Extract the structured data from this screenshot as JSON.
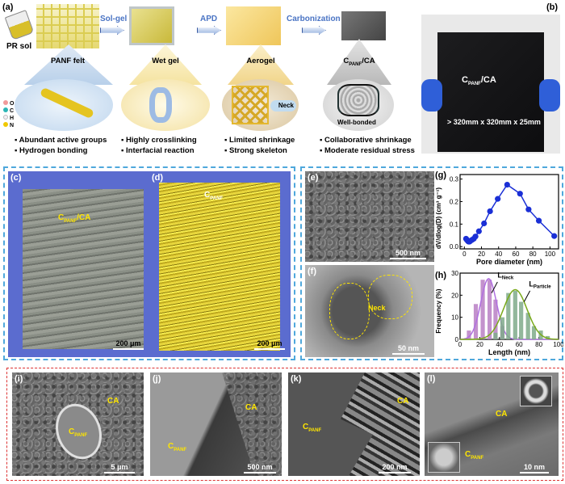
{
  "panel_a": {
    "label": "(a)",
    "steps": [
      "Sol-gel",
      "APD",
      "Carbonization"
    ],
    "stages": [
      {
        "title": "PANF felt",
        "bullets": [
          "Abundant active groups",
          "Hydrogen bonding"
        ]
      },
      {
        "title": "Wet gel",
        "bullets": [
          "Highly crosslinking",
          "Interfacial reaction"
        ]
      },
      {
        "title": "Aerogel",
        "bullets": [
          "Limited shrinkage",
          "Strong  skeleton"
        ]
      },
      {
        "title_main": "C",
        "title_sub": "PANF",
        "title_rest": "/CA",
        "bullets": [
          "Collaborative shrinkage",
          "Moderate residual stress"
        ]
      }
    ],
    "pr_sol": "PR sol",
    "neck": "Neck",
    "well_bonded": "Well-bonded",
    "atoms": [
      {
        "label": "O",
        "color": "#f09a9a"
      },
      {
        "label": "C",
        "color": "#2cb5b5"
      },
      {
        "label": "H",
        "color": "#f4eef4"
      },
      {
        "label": "N",
        "color": "#f0c800"
      }
    ]
  },
  "panel_b": {
    "label": "(b)",
    "title_main": "C",
    "title_sub": "PANF",
    "title_rest": "/CA",
    "size": "> 320mm x 320mm x 25mm"
  },
  "panel_c": {
    "label": "(c)",
    "title_main": "C",
    "title_sub": "PANF",
    "title_rest": "/CA",
    "scale": "200 μm"
  },
  "panel_d": {
    "label": "(d)",
    "title_main": "C",
    "title_sub": "PANF",
    "scale": "200 μm"
  },
  "panel_e": {
    "label": "(e)",
    "scale": "500 nm"
  },
  "panel_f": {
    "label": "(f)",
    "neck": "Neck",
    "scale": "50 nm"
  },
  "panel_i": {
    "label": "(i)",
    "ca": "CA",
    "cpanf_main": "C",
    "cpanf_sub": "PANF",
    "scale": "5 μm"
  },
  "panel_j": {
    "label": "(j)",
    "ca": "CA",
    "cpanf_main": "C",
    "cpanf_sub": "PANF",
    "scale": "500 nm"
  },
  "panel_k": {
    "label": "(k)",
    "ca": "CA",
    "cpanf_main": "C",
    "cpanf_sub": "PANF",
    "scale": "200 nm"
  },
  "panel_l": {
    "label": "(l)",
    "ca": "CA",
    "cpanf_main": "C",
    "cpanf_sub": "PANF",
    "scale": "10 nm"
  },
  "colors": {
    "blue_box": "#4fa8dc",
    "red_box": "#d33333",
    "annotation": "#ffe600",
    "g_series": "#1a2fd6",
    "neck": "#b97fc4",
    "particle": "#7faa8a"
  },
  "chart_data": [
    {
      "panel": "(g)",
      "type": "line",
      "xlabel": "Pore diameter (nm)",
      "ylabel": "dV/dlog(D) (cm³ g⁻¹)",
      "xlim": [
        -5,
        110
      ],
      "ylim": [
        -0.01,
        0.32
      ],
      "xticks": [
        0,
        20,
        40,
        60,
        80,
        100
      ],
      "yticks": [
        0.0,
        0.1,
        0.2,
        0.3
      ],
      "ytick_labels": [
        "0.0",
        "0.1",
        "0.2",
        "0.3"
      ],
      "x": [
        2,
        3,
        4,
        5,
        6,
        7,
        9,
        11,
        13,
        17,
        23,
        30,
        39,
        50,
        65,
        75,
        87,
        105
      ],
      "y": [
        0.035,
        0.03,
        0.025,
        0.022,
        0.022,
        0.025,
        0.03,
        0.035,
        0.045,
        0.068,
        0.103,
        0.157,
        0.212,
        0.275,
        0.235,
        0.165,
        0.115,
        0.047
      ]
    },
    {
      "panel": "(h)",
      "type": "bar",
      "xlabel": "Length (nm)",
      "ylabel": "Frequency (%)",
      "xlim": [
        0,
        100
      ],
      "ylim": [
        0,
        30
      ],
      "xticks": [
        0,
        20,
        40,
        60,
        80,
        100
      ],
      "yticks": [
        0,
        10,
        20,
        30
      ],
      "series": [
        {
          "name_main": "L",
          "name_sub": "Neck",
          "x": [
            9,
            16,
            23,
            30,
            36,
            43
          ],
          "values": [
            4,
            16,
            27,
            27,
            18,
            6
          ],
          "fit_mean": 29,
          "fit_sd": 8,
          "fit_peak": 27.5
        },
        {
          "name_main": "L",
          "name_sub": "Particle",
          "x": [
            36,
            43,
            49,
            56,
            62,
            69,
            75,
            82,
            89
          ],
          "values": [
            3,
            10,
            21,
            22,
            17,
            12,
            6,
            4,
            1.5
          ],
          "fit_mean": 56,
          "fit_sd": 12,
          "fit_peak": 22.5
        }
      ]
    }
  ]
}
